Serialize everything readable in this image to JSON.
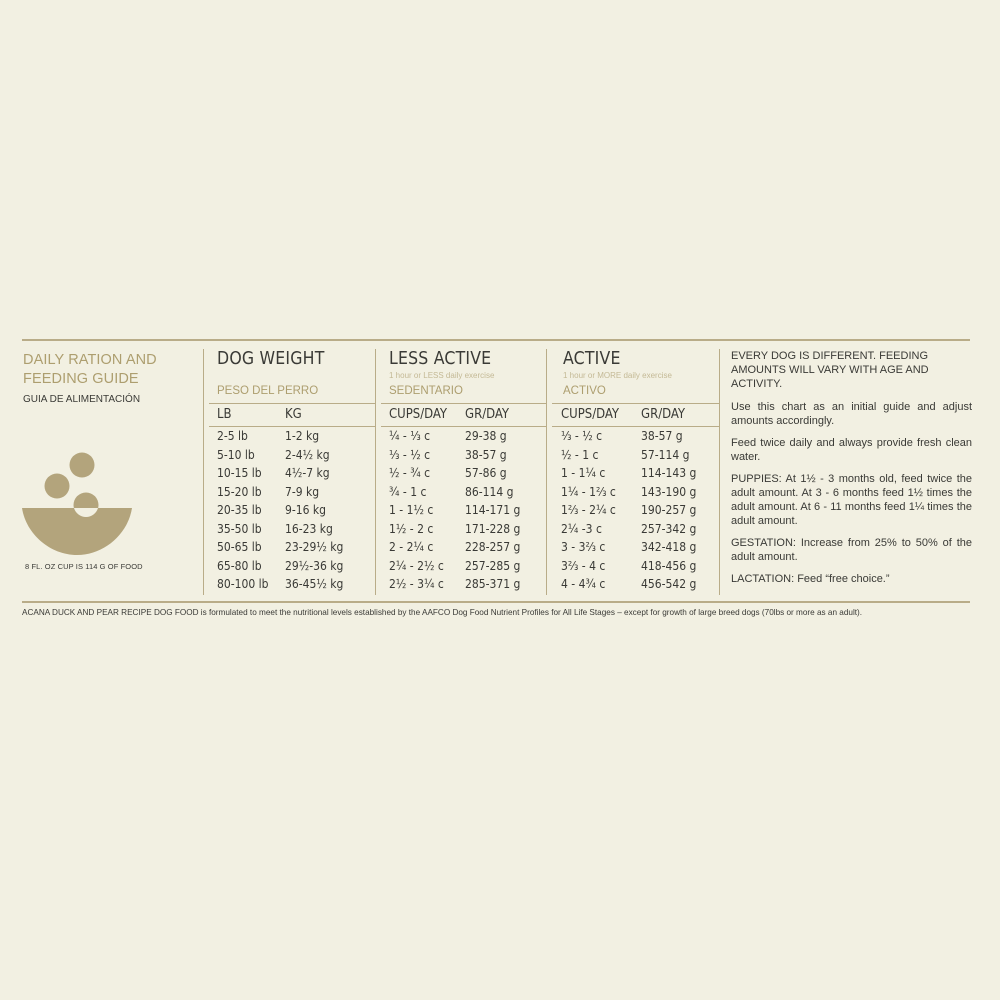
{
  "guide": {
    "title_line1": "DAILY RATION AND",
    "title_line2": "FEEDING GUIDE",
    "subtitle": "GUIA DE ALIMENTACIÓN",
    "cup_note": "8 FL. OZ CUP IS 114 G OF FOOD"
  },
  "columns": {
    "dog_weight": {
      "title": "DOG WEIGHT",
      "spanish": "PESO DEL PERRO",
      "unit_lb": "LB",
      "unit_kg": "KG"
    },
    "less_active": {
      "title": "LESS ACTIVE",
      "note": "1 hour or LESS daily exercise",
      "spanish": "SEDENTARIO",
      "unit_cups": "CUPS/DAY",
      "unit_gr": "GR/DAY"
    },
    "active": {
      "title": "ACTIVE",
      "note": "1 hour or MORE daily exercise",
      "spanish": "ACTIVO",
      "unit_cups": "CUPS/DAY",
      "unit_gr": "GR/DAY"
    }
  },
  "rows": [
    {
      "lb": "2-5 lb",
      "kg": "1-2 kg",
      "la_cups": "¼ - ⅓ c",
      "la_gr": "29-38 g",
      "a_cups": "⅓ - ½ c",
      "a_gr": "38-57 g"
    },
    {
      "lb": "5-10 lb",
      "kg": "2-4½ kg",
      "la_cups": "⅓ - ½ c",
      "la_gr": "38-57 g",
      "a_cups": "½ - 1 c",
      "a_gr": "57-114 g"
    },
    {
      "lb": "10-15 lb",
      "kg": "4½-7 kg",
      "la_cups": "½ - ¾ c",
      "la_gr": "57-86 g",
      "a_cups": "1 - 1¼ c",
      "a_gr": "114-143 g"
    },
    {
      "lb": "15-20 lb",
      "kg": "7-9 kg",
      "la_cups": "¾ - 1 c",
      "la_gr": "86-114 g",
      "a_cups": "1¼ - 1⅔ c",
      "a_gr": "143-190 g"
    },
    {
      "lb": "20-35 lb",
      "kg": "9-16 kg",
      "la_cups": "1 - 1½ c",
      "la_gr": "114-171 g",
      "a_cups": "1⅔ - 2¼ c",
      "a_gr": "190-257 g"
    },
    {
      "lb": "35-50 lb",
      "kg": "16-23 kg",
      "la_cups": "1½ - 2 c",
      "la_gr": "171-228 g",
      "a_cups": "2¼ -3 c",
      "a_gr": "257-342 g"
    },
    {
      "lb": "50-65 lb",
      "kg": "23-29½ kg",
      "la_cups": "2 - 2¼ c",
      "la_gr": "228-257 g",
      "a_cups": "3 - 3⅔ c",
      "a_gr": "342-418 g"
    },
    {
      "lb": "65-80 lb",
      "kg": "29½-36 kg",
      "la_cups": "2¼ - 2½ c",
      "la_gr": "257-285 g",
      "a_cups": "3⅔ - 4 c",
      "a_gr": "418-456 g"
    },
    {
      "lb": "80-100 lb",
      "kg": "36-45½ kg",
      "la_cups": "2½ - 3¼ c",
      "la_gr": "285-371 g",
      "a_cups": "4 - 4¾ c",
      "a_gr": "456-542 g"
    }
  ],
  "notes": {
    "intro": "EVERY DOG IS DIFFERENT. FEEDING AMOUNTS WILL VARY WITH AGE AND ACTIVITY.",
    "chart_guide": "Use this chart as an initial guide and adjust amounts accordingly.",
    "feed_twice": "Feed twice daily and always provide fresh clean water.",
    "puppies": "PUPPIES: At 1½ - 3 months old, feed twice the adult amount. At 3 - 6 months feed 1½ times the adult amount. At 6 - 11 months feed 1¼ times the adult amount.",
    "gestation": "GESTATION: Increase from 25% to 50% of the adult amount.",
    "lactation": "LACTATION: Feed “free choice.”"
  },
  "footnote": "ACANA DUCK AND PEAR RECIPE DOG FOOD is formulated to meet the nutritional levels established by the AAFCO Dog Food Nutrient Profiles for All Life Stages – except for growth of large breed dogs (70lbs or more as an adult).",
  "colors": {
    "background": "#f2f0e2",
    "accent": "#ad9e6f",
    "bowl": "#b3a47c",
    "text": "#3a3a36"
  },
  "icons": {
    "bowl": "food-bowl-icon"
  }
}
